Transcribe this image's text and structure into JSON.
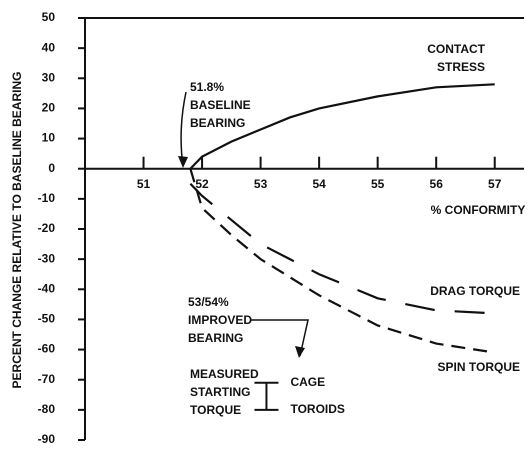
{
  "chart_data": {
    "type": "line",
    "y_label": "PERCENT CHANGE RELATIVE TO BASELINE BEARING",
    "x_label": "% CONFORMITY",
    "xlim": [
      50,
      57.5
    ],
    "ylim": [
      -90,
      50
    ],
    "xticks": [
      51,
      52,
      53,
      54,
      55,
      56,
      57
    ],
    "yticks": [
      -90,
      -80,
      -70,
      -60,
      -50,
      -40,
      -30,
      -20,
      -10,
      0,
      10,
      20,
      30,
      40,
      50
    ],
    "series": [
      {
        "name": "CONTACT STRESS",
        "style": "solid",
        "color": "#111111",
        "x": [
          51.8,
          52,
          52.5,
          53,
          53.5,
          54,
          55,
          56,
          57
        ],
        "values": [
          0,
          4,
          9,
          13,
          17,
          20,
          24,
          27,
          28
        ]
      },
      {
        "name": "DRAG TORQUE",
        "style": "long-dash",
        "color": "#111111",
        "x": [
          51.8,
          52,
          52.5,
          53,
          53.5,
          54,
          55,
          56,
          57
        ],
        "values": [
          -5,
          -9,
          -17,
          -25,
          -30,
          -35,
          -43,
          -47,
          -48
        ]
      },
      {
        "name": "SPIN TORQUE",
        "style": "dash",
        "color": "#111111",
        "x": [
          51.8,
          52,
          52.5,
          53,
          53.5,
          54,
          55,
          56,
          57
        ],
        "values": [
          0,
          -13,
          -22,
          -30,
          -36,
          -42,
          -52,
          -58,
          -61
        ]
      }
    ],
    "annotations": [
      {
        "lines": [
          "51.8%",
          "BASELINE",
          "BEARING"
        ]
      },
      {
        "lines": [
          "53/54%",
          "IMPROVED",
          "BEARING"
        ]
      },
      {
        "lines": [
          "MEASURED",
          "STARTING",
          "TORQUE"
        ]
      }
    ],
    "markers": [
      {
        "label": "CAGE",
        "x": 53.1,
        "value": -71
      },
      {
        "label": "TOROIDS",
        "x": 53.1,
        "value": -80
      }
    ]
  }
}
